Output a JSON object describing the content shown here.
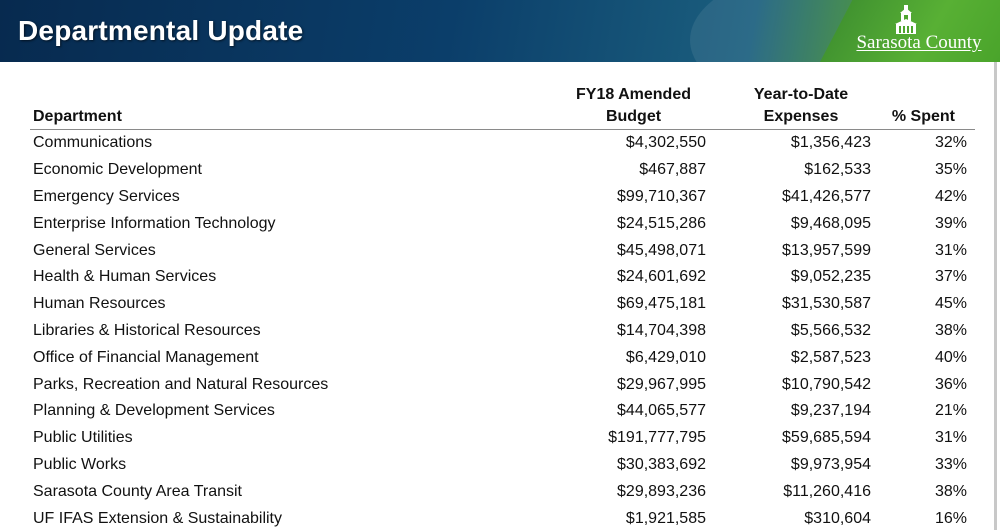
{
  "header": {
    "title": "Departmental Update",
    "logo_text": "Sarasota County",
    "logo_icon": "courthouse-tower-icon",
    "colors": {
      "navy": "#0b3e6a",
      "green": "#4ea52e"
    }
  },
  "table": {
    "headers": {
      "department": "Department",
      "budget_line1": "FY18 Amended",
      "budget_line2": "Budget",
      "expenses_line1": "Year-to-Date",
      "expenses_line2": "Expenses",
      "spent": "% Spent"
    },
    "rows": [
      {
        "department": "Communications",
        "budget": "$4,302,550",
        "expenses": "$1,356,423",
        "spent": "32%"
      },
      {
        "department": "Economic Development",
        "budget": "$467,887",
        "expenses": "$162,533",
        "spent": "35%"
      },
      {
        "department": "Emergency Services",
        "budget": "$99,710,367",
        "expenses": "$41,426,577",
        "spent": "42%"
      },
      {
        "department": "Enterprise Information Technology",
        "budget": "$24,515,286",
        "expenses": "$9,468,095",
        "spent": "39%"
      },
      {
        "department": "General Services",
        "budget": "$45,498,071",
        "expenses": "$13,957,599",
        "spent": "31%"
      },
      {
        "department": "Health & Human Services",
        "budget": "$24,601,692",
        "expenses": "$9,052,235",
        "spent": "37%"
      },
      {
        "department": "Human Resources",
        "budget": "$69,475,181",
        "expenses": "$31,530,587",
        "spent": "45%"
      },
      {
        "department": "Libraries & Historical Resources",
        "budget": "$14,704,398",
        "expenses": "$5,566,532",
        "spent": "38%"
      },
      {
        "department": "Office of Financial Management",
        "budget": "$6,429,010",
        "expenses": "$2,587,523",
        "spent": "40%"
      },
      {
        "department": "Parks, Recreation and Natural Resources",
        "budget": "$29,967,995",
        "expenses": "$10,790,542",
        "spent": "36%"
      },
      {
        "department": "Planning & Development Services",
        "budget": "$44,065,577",
        "expenses": "$9,237,194",
        "spent": "21%"
      },
      {
        "department": "Public Utilities",
        "budget": "$191,777,795",
        "expenses": "$59,685,594",
        "spent": "31%"
      },
      {
        "department": "Public Works",
        "budget": "$30,383,692",
        "expenses": "$9,973,954",
        "spent": "33%"
      },
      {
        "department": "Sarasota County Area Transit",
        "budget": "$29,893,236",
        "expenses": "$11,260,416",
        "spent": "38%"
      },
      {
        "department": "UF IFAS Extension & Sustainability",
        "budget": "$1,921,585",
        "expenses": "$310,604",
        "spent": "16%"
      }
    ]
  }
}
